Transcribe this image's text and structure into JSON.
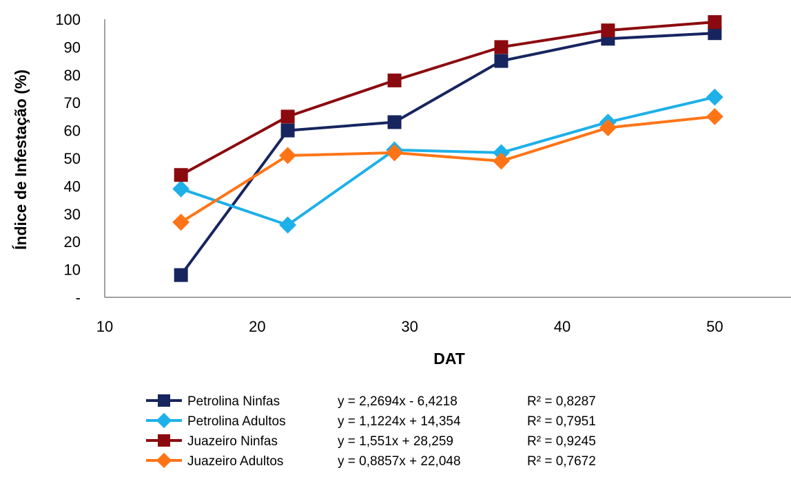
{
  "chart_data": {
    "type": "line",
    "title": "",
    "xlabel": "DAT",
    "ylabel": "Índice de Infestação (%)",
    "xlim": [
      10,
      55
    ],
    "ylim": [
      0,
      100
    ],
    "x_ticks": [
      {
        "value": 10,
        "label": "10"
      },
      {
        "value": 20,
        "label": "20"
      },
      {
        "value": 30,
        "label": "30"
      },
      {
        "value": 40,
        "label": "40"
      },
      {
        "value": 50,
        "label": "50"
      }
    ],
    "y_ticks": [
      {
        "value": 0,
        "label": "-"
      },
      {
        "value": 10,
        "label": "10"
      },
      {
        "value": 20,
        "label": "20"
      },
      {
        "value": 30,
        "label": "30"
      },
      {
        "value": 40,
        "label": "40"
      },
      {
        "value": 50,
        "label": "50"
      },
      {
        "value": 60,
        "label": "60"
      },
      {
        "value": 70,
        "label": "70"
      },
      {
        "value": 80,
        "label": "80"
      },
      {
        "value": 90,
        "label": "90"
      },
      {
        "value": 100,
        "label": "100"
      }
    ],
    "grid": false,
    "legend_position": "bottom",
    "x": [
      15,
      22,
      29,
      36,
      43,
      50
    ],
    "series": [
      {
        "name": "Petrolina Ninfas",
        "values": [
          8,
          60,
          63,
          85,
          93,
          95
        ],
        "color": "#17255f",
        "marker": "square",
        "equation": "y = 2,2694x - 6,4218",
        "r2": "R² = 0,8287"
      },
      {
        "name": "Petrolina Adultos",
        "values": [
          39,
          26,
          53,
          52,
          63,
          72
        ],
        "color": "#1eb0e8",
        "marker": "diamond",
        "equation": "y = 1,1224x + 14,354",
        "r2": "R² = 0,7951"
      },
      {
        "name": "Juazeiro Ninfas",
        "values": [
          44,
          65,
          78,
          90,
          96,
          99
        ],
        "color": "#8b0a0f",
        "marker": "square",
        "equation": "y = 1,551x + 28,259",
        "r2": "R² = 0,9245"
      },
      {
        "name": "Juazeiro Adultos",
        "values": [
          27,
          51,
          52,
          49,
          61,
          65
        ],
        "color": "#ff7416",
        "marker": "diamond",
        "equation": "y = 0,8857x + 22,048",
        "r2": "R² = 0,7672"
      }
    ]
  }
}
